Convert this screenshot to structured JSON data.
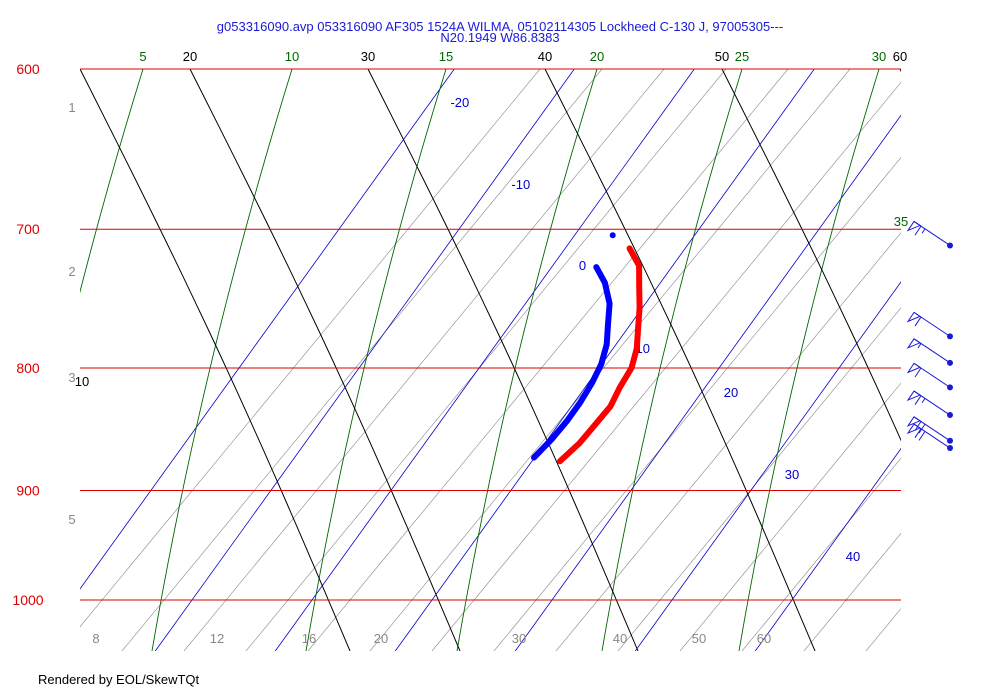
{
  "header": {
    "title_line1": "g053316090.avp 053316090 AF305 1524A WILMA, 05102114305 Lockheed C-130 J, 97005305---",
    "title_line2": "N20.1949 W86.8383"
  },
  "footer": {
    "credit": "Rendered by EOL/SkewTQt"
  },
  "colors": {
    "isobar": "#dd0000",
    "isotherm": "#0000cc",
    "dry_adiabat": "#000000",
    "moist_adiabat": "#006600",
    "mixing_ratio": "#888888",
    "temperature": "#ff0000",
    "dewpoint": "#0000ff",
    "wind": "#1a1ad6",
    "title": "#1a1ad6"
  },
  "chart_data": {
    "type": "skew-t",
    "pressure_range_hPa": [
      1000,
      600
    ],
    "isobars_hPa": [
      600,
      700,
      800,
      900,
      1000
    ],
    "pressure_tick_labels": [
      "600",
      "700",
      "800",
      "900",
      "1000"
    ],
    "isotherms_C": [
      -20,
      -10,
      0,
      10,
      20,
      30,
      40
    ],
    "isotherm_labels": [
      "-20",
      "-10",
      "0",
      "10",
      "20",
      "30",
      "40"
    ],
    "dry_adiabats": [
      {
        "label": "10"
      },
      {
        "label": "20"
      },
      {
        "label": "30"
      },
      {
        "label": "40"
      },
      {
        "label": "50"
      },
      {
        "label": "60"
      }
    ],
    "moist_adiabats": [
      {
        "label": "5"
      },
      {
        "label": "10"
      },
      {
        "label": "15"
      },
      {
        "label": "20"
      },
      {
        "label": "25"
      },
      {
        "label": "30"
      },
      {
        "label": "35"
      }
    ],
    "mixing_ratio_left_labels": [
      "1",
      "2",
      "3",
      "5"
    ],
    "mixing_ratio_bottom_labels": [
      "8",
      "12",
      "16",
      "20",
      "30",
      "40",
      "50",
      "60"
    ],
    "temperature_series": {
      "p_hPa": [
        875,
        860,
        845,
        830,
        815,
        800,
        785,
        770,
        755,
        740,
        725,
        713
      ],
      "T_C": [
        20.8,
        21.1,
        21.2,
        21.3,
        21.1,
        21.0,
        20.6,
        20.0,
        19.4,
        18.7,
        18.0,
        17.0
      ]
    },
    "dewpoint_series": {
      "p_hPa": [
        872,
        857,
        842,
        827,
        812,
        797,
        782,
        767,
        752,
        737,
        726
      ],
      "Td_C": [
        19.5,
        19.7,
        19.8,
        19.8,
        19.7,
        19.5,
        19.1,
        18.5,
        17.9,
        17.0,
        16.1
      ]
    },
    "isolated_point": {
      "p_hPa": 704,
      "T_C": 15.8
    },
    "wind_barbs": [
      {
        "p_hPa": 711,
        "speed_kt": 65
      },
      {
        "p_hPa": 776,
        "speed_kt": 60
      },
      {
        "p_hPa": 796,
        "speed_kt": 55
      },
      {
        "p_hPa": 815,
        "speed_kt": 60
      },
      {
        "p_hPa": 837,
        "speed_kt": 65
      },
      {
        "p_hPa": 858,
        "speed_kt": 70
      },
      {
        "p_hPa": 864,
        "speed_kt": 70
      }
    ]
  }
}
